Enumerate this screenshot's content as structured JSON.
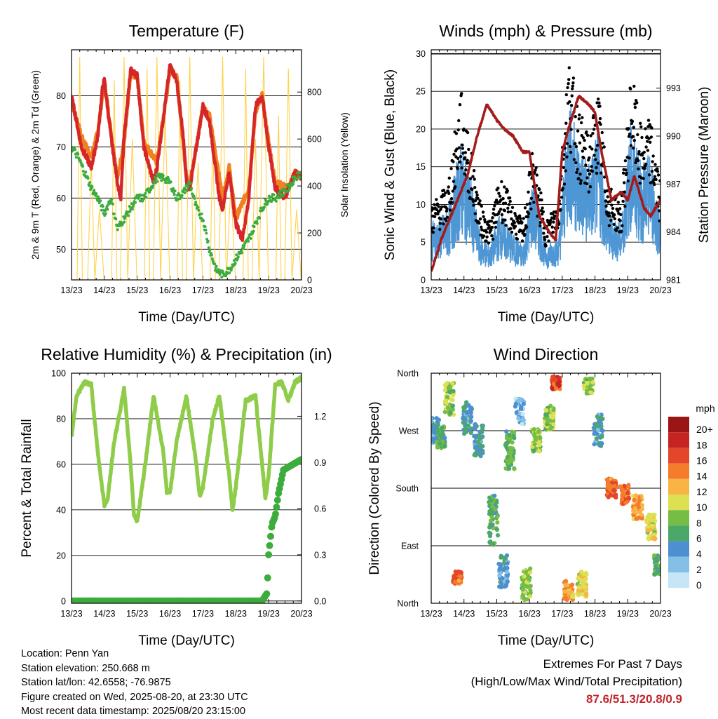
{
  "chart_data": [
    {
      "type": "line",
      "title": "Temperature (F)",
      "xlabel": "Time (Day/UTC)",
      "ylabel": "2m & 9m T (Red, Orange) & 2m Td (Green)",
      "ylabel_right": "Solar Insolation (Yellow)",
      "x_ticks": [
        "13/23",
        "14/23",
        "15/23",
        "16/23",
        "17/23",
        "18/23",
        "19/23",
        "20/23"
      ],
      "ylim": [
        44,
        89
      ],
      "y_ticks": [
        50,
        60,
        70,
        80
      ],
      "y2lim": [
        0,
        980
      ],
      "y2_ticks": [
        0,
        200,
        400,
        600,
        800
      ],
      "grid": true,
      "series": [
        {
          "name": "2m T",
          "color": "#d62728",
          "x": [
            0,
            0.3,
            0.6,
            0.8,
            0.95,
            1.0,
            1.2,
            1.4,
            1.5,
            1.6,
            1.8,
            2.0,
            2.2,
            2.5,
            2.6,
            2.8,
            3.0,
            3.2,
            3.4,
            3.5,
            3.6,
            3.8,
            4.0,
            4.2,
            4.5,
            4.6,
            4.8,
            5.0,
            5.2,
            5.4,
            5.5,
            5.6,
            5.8,
            6.0,
            6.2,
            6.5,
            6.6,
            6.8,
            7.0
          ],
          "values": [
            80,
            70,
            66,
            72,
            82,
            83,
            72,
            63,
            60,
            72,
            85,
            84,
            70,
            63,
            66,
            76,
            86,
            83,
            72,
            63,
            62,
            70,
            78,
            75,
            60,
            58,
            65,
            55,
            52,
            60,
            70,
            78,
            80,
            70,
            62,
            60,
            62,
            65,
            64
          ]
        },
        {
          "name": "9m T",
          "color": "#f08020",
          "x": [
            0,
            0.3,
            0.6,
            0.8,
            1.0,
            1.2,
            1.4,
            1.6,
            1.8,
            2.0,
            2.2,
            2.6,
            2.8,
            3.0,
            3.2,
            3.5,
            3.6,
            3.8,
            4.0,
            4.2,
            4.6,
            4.8,
            5.0,
            5.4,
            5.6,
            5.8,
            6.0,
            6.2,
            6.6,
            6.8,
            7.0
          ],
          "values": [
            79,
            72,
            68,
            73,
            83,
            73,
            64,
            71,
            84,
            84,
            71,
            67,
            76,
            85,
            84,
            64,
            63,
            70,
            78,
            76,
            60,
            66,
            56,
            62,
            77,
            80,
            71,
            63,
            62,
            65,
            64
          ]
        },
        {
          "name": "2m Td",
          "color": "#3cac3c",
          "x": [
            0,
            0.2,
            0.4,
            0.6,
            0.8,
            1.0,
            1.2,
            1.4,
            1.6,
            1.8,
            2.0,
            2.2,
            2.4,
            2.6,
            2.8,
            3.0,
            3.2,
            3.4,
            3.6,
            3.8,
            4.0,
            4.2,
            4.4,
            4.6,
            4.8,
            5.0,
            5.2,
            5.4,
            5.6,
            5.8,
            6.0,
            6.2,
            6.4,
            6.6,
            6.8,
            7.0
          ],
          "values": [
            70,
            68,
            65,
            62,
            60,
            57,
            60,
            54,
            56,
            58,
            60,
            60,
            62,
            64,
            64,
            63,
            60,
            61,
            63,
            58,
            56,
            50,
            46,
            45,
            46,
            48,
            50,
            52,
            55,
            58,
            60,
            60,
            61,
            62,
            64,
            65
          ]
        },
        {
          "name": "Solar Insolation",
          "axis": "right",
          "color": "#ffd24a",
          "peak_x": [
            0.25,
            0.6,
            0.85,
            1.3,
            1.6,
            1.85,
            2.3,
            2.6,
            2.85,
            3.3,
            3.6,
            3.85,
            4.3,
            4.6,
            4.85,
            5.3,
            5.6,
            5.85,
            6.3,
            6.6,
            6.85
          ],
          "peak_values": [
            950,
            500,
            300,
            850,
            950,
            600,
            900,
            950,
            700,
            850,
            950,
            500,
            650,
            950,
            400,
            900,
            600,
            950,
            700,
            900,
            300
          ]
        }
      ]
    },
    {
      "type": "line",
      "title": "Winds (mph) & Pressure (mb)",
      "xlabel": "Time (Day/UTC)",
      "ylabel": "Sonic Wind & Gust (Blue, Black)",
      "ylabel_right": "Station Pressure (Maroon)",
      "x_ticks": [
        "13/23",
        "14/23",
        "15/23",
        "16/23",
        "17/23",
        "18/23",
        "19/23",
        "20/23"
      ],
      "ylim": [
        0,
        30.5
      ],
      "y_ticks": [
        0,
        5,
        10,
        15,
        20,
        25,
        30
      ],
      "y2lim": [
        981,
        995.4
      ],
      "y2_ticks": [
        981,
        984,
        987,
        990,
        993
      ],
      "grid": true,
      "series": [
        {
          "name": "Sonic Wind",
          "color": "#4e97d4",
          "x": [
            0,
            0.5,
            0.9,
            1.2,
            1.5,
            1.8,
            2.1,
            2.5,
            2.8,
            3.1,
            3.5,
            3.9,
            4.2,
            4.5,
            4.8,
            5.1,
            5.4,
            5.8,
            6.1,
            6.4,
            6.7,
            7.0
          ],
          "values": [
            5,
            6,
            12,
            9,
            4,
            3,
            6,
            4,
            3,
            9,
            3,
            4,
            16,
            12,
            10,
            13,
            6,
            5,
            14,
            10,
            11,
            6
          ]
        },
        {
          "name": "Gust",
          "color": "#000000",
          "x": [
            0,
            0.5,
            0.9,
            1.2,
            1.5,
            1.8,
            2.1,
            2.5,
            2.8,
            3.1,
            3.5,
            3.9,
            4.2,
            4.5,
            4.8,
            5.1,
            5.4,
            5.8,
            6.1,
            6.4,
            6.7,
            7.0
          ],
          "values": [
            8,
            10,
            20,
            14,
            8,
            6,
            11,
            8,
            6,
            14,
            6,
            9,
            24,
            18,
            15,
            20,
            10,
            8,
            22,
            16,
            17,
            10
          ]
        },
        {
          "name": "Station Pressure",
          "axis": "right",
          "color": "#a31b1b",
          "x": [
            0,
            0.3,
            0.6,
            0.9,
            1.1,
            1.4,
            1.7,
            2.0,
            2.2,
            2.5,
            2.8,
            3.0,
            3.3,
            3.6,
            3.8,
            4.0,
            4.2,
            4.5,
            4.8,
            5.0,
            5.2,
            5.5,
            5.8,
            6.0,
            6.2,
            6.5,
            6.7,
            7.0
          ],
          "values": [
            981.5,
            983.5,
            985,
            986.5,
            987.5,
            990,
            992,
            991,
            990.5,
            990,
            989,
            989,
            985,
            984,
            983.5,
            989,
            990.5,
            992.5,
            992,
            991.5,
            989,
            986,
            986.5,
            986,
            987.5,
            985.5,
            985,
            986
          ]
        }
      ]
    },
    {
      "type": "line",
      "title": "Relative Humidity (%) & Precipitation (in)",
      "xlabel": "Time (Day/UTC)",
      "ylabel": "Percent & Total Rainfall",
      "x_ticks": [
        "13/23",
        "14/23",
        "15/23",
        "16/23",
        "17/23",
        "18/23",
        "19/23",
        "20/23"
      ],
      "ylim": [
        -1,
        100
      ],
      "y_ticks": [
        0,
        20,
        40,
        60,
        80,
        100
      ],
      "y2lim": [
        -0.0148,
        1.48
      ],
      "y2_ticks": [
        0.0,
        0.3,
        0.6,
        0.9,
        1.2
      ],
      "y2_tick_labels": [
        "0.0",
        "0.3",
        "0.6",
        "0.9",
        "1.2"
      ],
      "grid": true,
      "series": [
        {
          "name": "Relative Humidity",
          "color": "#8fcc4a",
          "x": [
            0,
            0.15,
            0.4,
            0.6,
            0.8,
            1.0,
            1.1,
            1.3,
            1.6,
            1.8,
            1.9,
            2.0,
            2.2,
            2.5,
            2.8,
            2.9,
            3.0,
            3.2,
            3.5,
            3.8,
            3.9,
            4.0,
            4.3,
            4.5,
            4.8,
            4.9,
            5.0,
            5.3,
            5.6,
            5.8,
            5.9,
            6.0,
            6.2,
            6.4,
            6.6,
            6.8,
            7.0
          ],
          "values": [
            72,
            90,
            96,
            95,
            65,
            42,
            45,
            70,
            93,
            60,
            38,
            35,
            55,
            90,
            65,
            48,
            48,
            70,
            90,
            60,
            46,
            50,
            80,
            90,
            55,
            40,
            50,
            88,
            90,
            60,
            45,
            55,
            95,
            96,
            88,
            96,
            98
          ]
        },
        {
          "name": "Total Rainfall",
          "axis": "right",
          "color": "#3cac3c",
          "x": [
            0,
            5.8,
            5.95,
            6.0,
            6.1,
            6.2,
            6.3,
            6.45,
            6.6,
            7.0
          ],
          "values": [
            0,
            0,
            0.05,
            0.3,
            0.5,
            0.55,
            0.7,
            0.85,
            0.87,
            0.92
          ]
        }
      ]
    },
    {
      "type": "scatter",
      "title": "Wind Direction",
      "xlabel": "Time (Day/UTC)",
      "ylabel": "Direction (Colored By Speed)",
      "x_ticks": [
        "13/23",
        "14/23",
        "15/23",
        "16/23",
        "17/23",
        "18/23",
        "19/23",
        "20/23"
      ],
      "y_ticks": [
        "North",
        "East",
        "South",
        "West",
        "North"
      ],
      "ylim": [
        0,
        360
      ],
      "grid": true,
      "legend": {
        "title": "mph",
        "placement": "right",
        "labels": [
          "0",
          "2",
          "4",
          "6",
          "8",
          "10",
          "12",
          "14",
          "16",
          "18",
          "20+"
        ],
        "colors": [
          "#c6e6f7",
          "#84bfe6",
          "#4d8fd0",
          "#4ba868",
          "#75bd45",
          "#dde052",
          "#f8b444",
          "#f57c2d",
          "#e4462b",
          "#c52422",
          "#9a1616"
        ]
      },
      "clusters": [
        {
          "x": 0.1,
          "y": 270,
          "spread": 20,
          "speed": 4
        },
        {
          "x": 0.3,
          "y": 260,
          "spread": 18,
          "speed": 6
        },
        {
          "x": 0.55,
          "y": 320,
          "spread": 25,
          "speed": 8
        },
        {
          "x": 0.8,
          "y": 40,
          "spread": 10,
          "speed": 14
        },
        {
          "x": 1.1,
          "y": 290,
          "spread": 25,
          "speed": 4
        },
        {
          "x": 1.45,
          "y": 255,
          "spread": 25,
          "speed": 4
        },
        {
          "x": 1.9,
          "y": 130,
          "spread": 40,
          "speed": 6
        },
        {
          "x": 2.2,
          "y": 50,
          "spread": 25,
          "speed": 4
        },
        {
          "x": 2.4,
          "y": 240,
          "spread": 30,
          "speed": 6
        },
        {
          "x": 2.7,
          "y": 300,
          "spread": 20,
          "speed": 2
        },
        {
          "x": 2.9,
          "y": 30,
          "spread": 25,
          "speed": 8
        },
        {
          "x": 3.2,
          "y": 255,
          "spread": 18,
          "speed": 8
        },
        {
          "x": 3.6,
          "y": 290,
          "spread": 20,
          "speed": 8
        },
        {
          "x": 3.8,
          "y": 345,
          "spread": 10,
          "speed": 16
        },
        {
          "x": 4.2,
          "y": 20,
          "spread": 15,
          "speed": 12
        },
        {
          "x": 4.6,
          "y": 30,
          "spread": 20,
          "speed": 10
        },
        {
          "x": 4.8,
          "y": 340,
          "spread": 12,
          "speed": 8
        },
        {
          "x": 5.1,
          "y": 270,
          "spread": 25,
          "speed": 4
        },
        {
          "x": 5.5,
          "y": 180,
          "spread": 15,
          "speed": 14
        },
        {
          "x": 5.9,
          "y": 170,
          "spread": 15,
          "speed": 14
        },
        {
          "x": 6.3,
          "y": 150,
          "spread": 20,
          "speed": 12
        },
        {
          "x": 6.7,
          "y": 120,
          "spread": 20,
          "speed": 10
        },
        {
          "x": 6.95,
          "y": 60,
          "spread": 15,
          "speed": 6
        }
      ]
    }
  ],
  "info": {
    "location": "Location: Penn Yan",
    "elevation": "Station elevation: 250.668 m",
    "latlon": "Station lat/lon: 42.6558; -76.9875",
    "created": "Figure created on Wed, 2025-08-20, at 23:30 UTC",
    "timestamp": "Most recent data timestamp: 2025/08/20 23:15:00"
  },
  "extremes": {
    "heading": "Extremes For Past 7 Days",
    "subheading": "(High/Low/Max Wind/Total Precipitation)",
    "values": "87.6/51.3/20.8/0.9"
  }
}
